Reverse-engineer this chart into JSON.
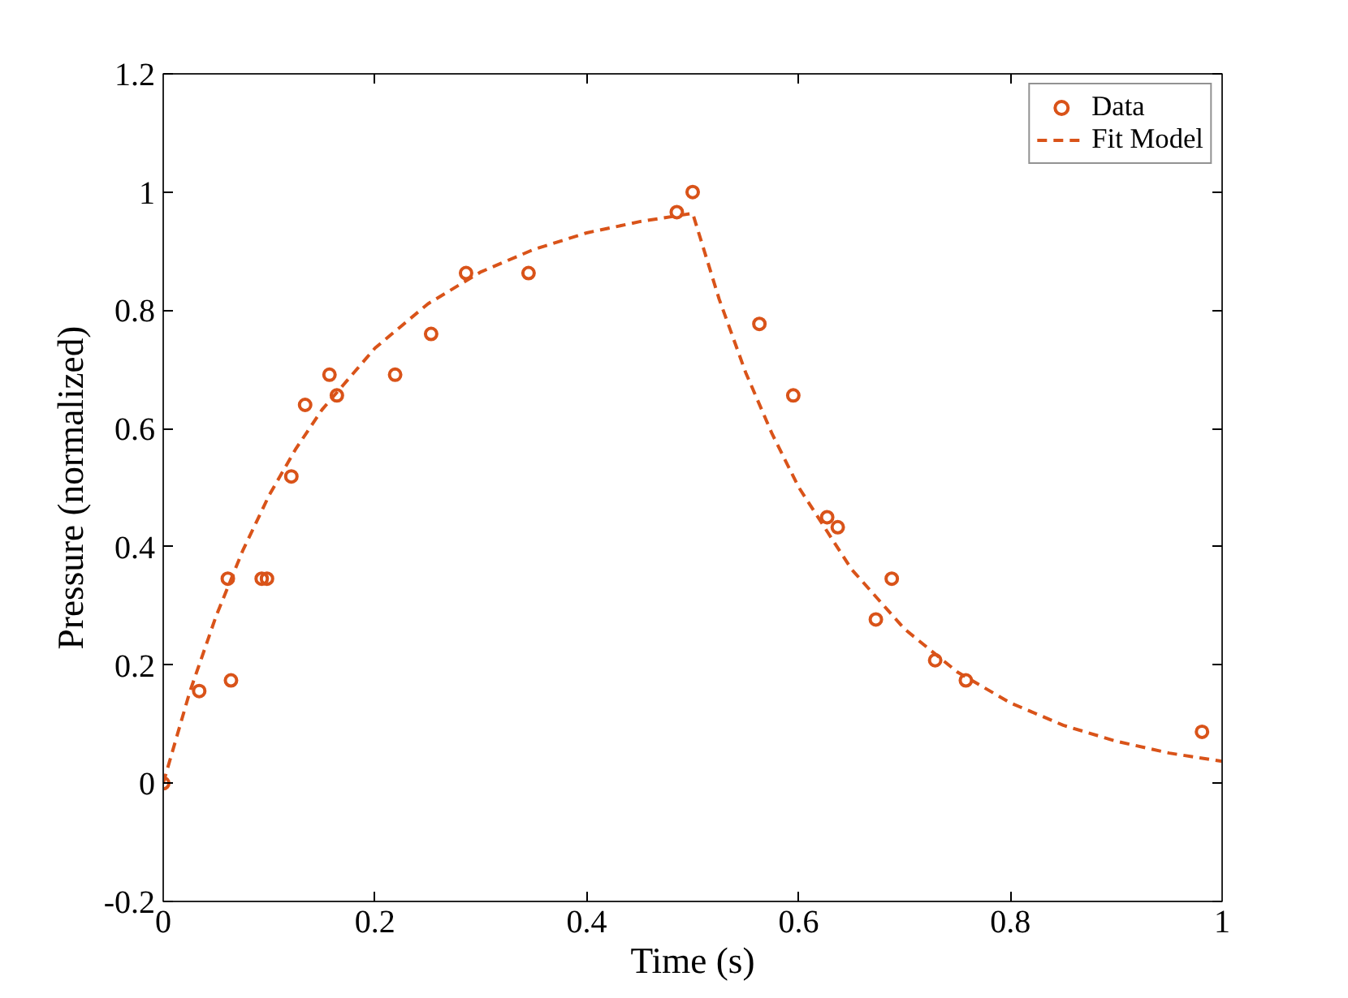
{
  "chart_data": {
    "type": "scatter",
    "xlabel": "Time (s)",
    "ylabel": "Pressure (normalized)",
    "xlim": [
      0,
      1
    ],
    "ylim": [
      -0.2,
      1.2
    ],
    "xticks": [
      0,
      0.2,
      0.4,
      0.6,
      0.8,
      1
    ],
    "yticks": [
      -0.2,
      0,
      0.2,
      0.4,
      0.6,
      0.8,
      1,
      1.2
    ],
    "grid": false,
    "legend": "top right",
    "series": [
      {
        "name": "Data",
        "marker": "circle",
        "color": "#d95319",
        "x": [
          0,
          0.034,
          0.061,
          0.064,
          0.093,
          0.098,
          0.121,
          0.134,
          0.157,
          0.164,
          0.219,
          0.253,
          0.286,
          0.345,
          0.485,
          0.5,
          0.563,
          0.595,
          0.627,
          0.637,
          0.673,
          0.688,
          0.729,
          0.758,
          0.981
        ],
        "values": [
          0,
          0.156,
          0.346,
          0.174,
          0.346,
          0.346,
          0.519,
          0.64,
          0.691,
          0.656,
          0.691,
          0.76,
          0.863,
          0.863,
          0.966,
          1.0,
          0.777,
          0.656,
          0.45,
          0.433,
          0.277,
          0.346,
          0.208,
          0.174,
          0.087
        ]
      },
      {
        "name": "Fit Model",
        "type": "line",
        "line_style": "dashed",
        "color": "#d95319",
        "x": [
          0,
          0.025,
          0.05,
          0.075,
          0.1,
          0.125,
          0.15,
          0.2,
          0.25,
          0.3,
          0.35,
          0.4,
          0.45,
          0.5,
          0.525,
          0.55,
          0.575,
          0.6,
          0.65,
          0.7,
          0.75,
          0.8,
          0.85,
          0.9,
          0.95,
          1.0
        ],
        "values": [
          0,
          0.154,
          0.283,
          0.393,
          0.487,
          0.565,
          0.632,
          0.736,
          0.811,
          0.865,
          0.903,
          0.931,
          0.95,
          0.964,
          0.819,
          0.695,
          0.591,
          0.501,
          0.362,
          0.261,
          0.188,
          0.136,
          0.098,
          0.071,
          0.051,
          0.037
        ]
      }
    ]
  }
}
